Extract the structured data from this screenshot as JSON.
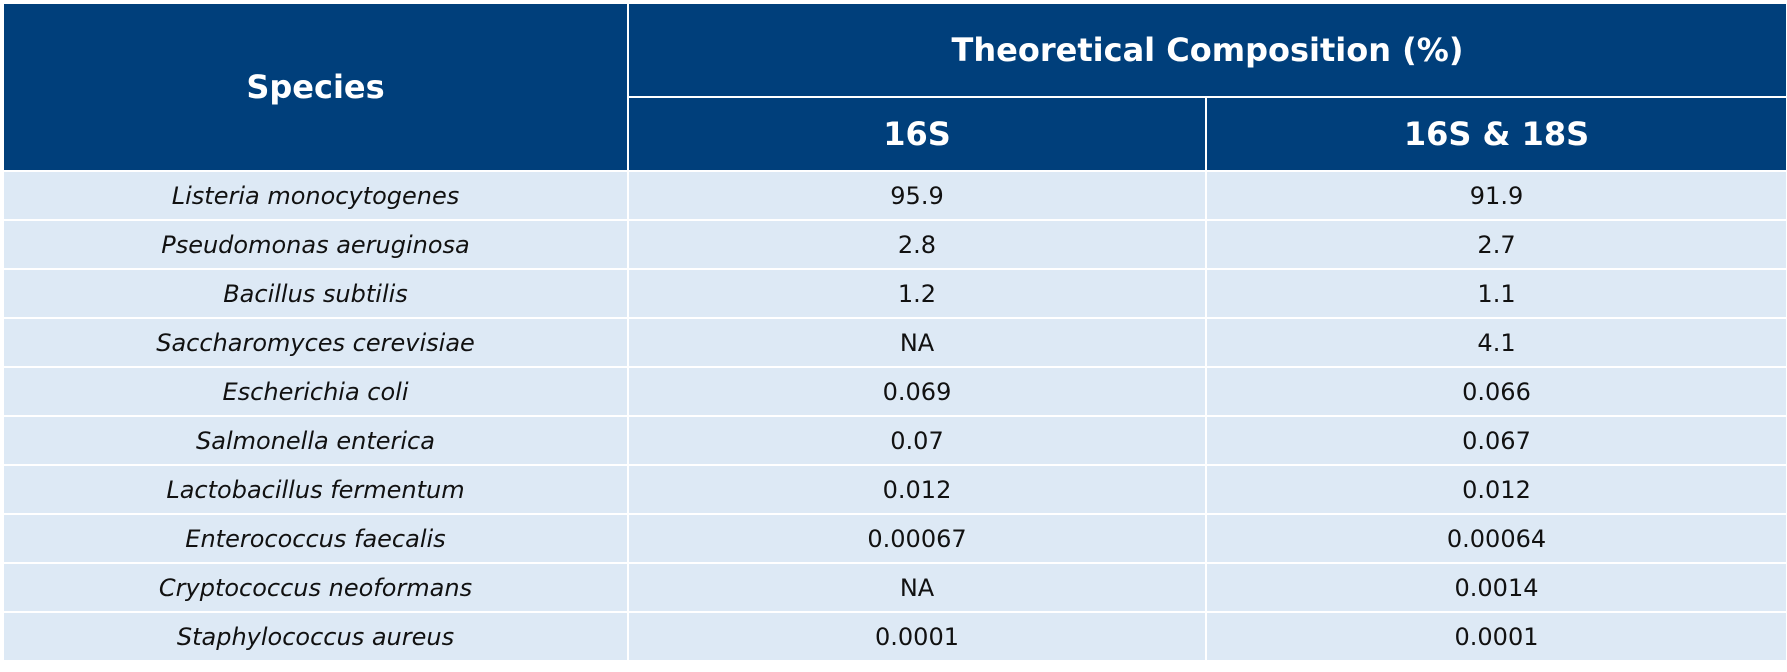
{
  "header": {
    "species": "Species",
    "group": "Theoretical Composition (%)",
    "col_16s": "16S",
    "col_16s_18s": "16S & 18S"
  },
  "rows": [
    {
      "species": "Listeria monocytogenes",
      "v16s": "95.9",
      "v1618": "91.9"
    },
    {
      "species": "Pseudomonas aeruginosa",
      "v16s": "2.8",
      "v1618": "2.7"
    },
    {
      "species": "Bacillus subtilis",
      "v16s": "1.2",
      "v1618": "1.1"
    },
    {
      "species": "Saccharomyces cerevisiae",
      "v16s": "NA",
      "v1618": "4.1"
    },
    {
      "species": "Escherichia coli",
      "v16s": "0.069",
      "v1618": "0.066"
    },
    {
      "species": "Salmonella enterica",
      "v16s": "0.07",
      "v1618": "0.067"
    },
    {
      "species": "Lactobacillus fermentum",
      "v16s": "0.012",
      "v1618": "0.012"
    },
    {
      "species": "Enterococcus faecalis",
      "v16s": "0.00067",
      "v1618": "0.00064"
    },
    {
      "species": "Cryptococcus neoformans",
      "v16s": "NA",
      "v1618": "0.0014"
    },
    {
      "species": "Staphylococcus aureus",
      "v16s": "0.0001",
      "v1618": "0.0001"
    }
  ],
  "colors": {
    "header_bg": "#003f7b",
    "row_bg": "#dde9f5"
  }
}
